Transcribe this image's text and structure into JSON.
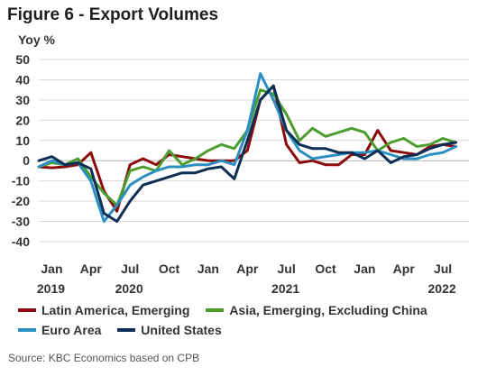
{
  "title": "Figure 6 - Export Volumes",
  "source": "Source: KBC Economics based on CPB",
  "chart_data": {
    "type": "line",
    "ylabel": "Yoy %",
    "ylim": [
      -40,
      50
    ],
    "yticks": [
      50,
      40,
      30,
      20,
      10,
      0,
      -10,
      -20,
      -30,
      -40
    ],
    "xticks": [
      {
        "label": "Jan",
        "year": "2019",
        "x": 1
      },
      {
        "label": "Apr",
        "x": 4
      },
      {
        "label": "Jul",
        "year": "2020",
        "x": 7
      },
      {
        "label": "Oct",
        "x": 10
      },
      {
        "label": "Jan",
        "x": 13
      },
      {
        "label": "Apr",
        "x": 16
      },
      {
        "label": "Jul",
        "year": "2021",
        "x": 19
      },
      {
        "label": "Oct",
        "x": 22
      },
      {
        "label": "Jan",
        "x": 25
      },
      {
        "label": "Apr",
        "x": 28
      },
      {
        "label": "Jul",
        "year": "2022",
        "x": 31
      }
    ],
    "x_range": [
      0,
      33
    ],
    "grid": true,
    "legend_position": "bottom",
    "series": [
      {
        "name": "Latin America, Emerging",
        "color": "#8b0a0a",
        "points": [
          [
            0,
            -3
          ],
          [
            1,
            -3.5
          ],
          [
            2,
            -3
          ],
          [
            3,
            -2
          ],
          [
            4,
            4
          ],
          [
            5,
            -15
          ],
          [
            6,
            -25
          ],
          [
            7,
            -2
          ],
          [
            8,
            1
          ],
          [
            9,
            -2
          ],
          [
            10,
            3
          ],
          [
            11,
            2
          ],
          [
            12,
            1
          ],
          [
            13,
            0
          ],
          [
            14,
            0
          ],
          [
            15,
            0
          ],
          [
            16,
            5
          ],
          [
            17,
            30
          ],
          [
            18,
            37
          ],
          [
            19,
            8
          ],
          [
            20,
            -1
          ],
          [
            21,
            0
          ],
          [
            22,
            -2
          ],
          [
            23,
            -2
          ],
          [
            24,
            3
          ],
          [
            25,
            3
          ],
          [
            26,
            15
          ],
          [
            27,
            5
          ],
          [
            28,
            4
          ],
          [
            29,
            3
          ],
          [
            30,
            7
          ],
          [
            31,
            8
          ],
          [
            32,
            7
          ]
        ]
      },
      {
        "name": "Asia, Emerging, Excluding China",
        "color": "#4c9c2e",
        "points": [
          [
            0,
            -3
          ],
          [
            1,
            -1
          ],
          [
            2,
            -2
          ],
          [
            3,
            1
          ],
          [
            4,
            -8
          ],
          [
            5,
            -16
          ],
          [
            6,
            -22
          ],
          [
            7,
            -5
          ],
          [
            8,
            -3
          ],
          [
            9,
            -5
          ],
          [
            10,
            5
          ],
          [
            11,
            -2
          ],
          [
            12,
            1
          ],
          [
            13,
            5
          ],
          [
            14,
            8
          ],
          [
            15,
            6
          ],
          [
            16,
            15
          ],
          [
            17,
            35
          ],
          [
            18,
            33
          ],
          [
            19,
            23
          ],
          [
            20,
            10
          ],
          [
            21,
            16
          ],
          [
            22,
            12
          ],
          [
            23,
            14
          ],
          [
            24,
            16
          ],
          [
            25,
            14
          ],
          [
            26,
            5
          ],
          [
            27,
            9
          ],
          [
            28,
            11
          ],
          [
            29,
            7
          ],
          [
            30,
            8
          ],
          [
            31,
            11
          ],
          [
            32,
            9
          ]
        ]
      },
      {
        "name": "Euro Area",
        "color": "#2b8fc2",
        "points": [
          [
            0,
            -3
          ],
          [
            1,
            0
          ],
          [
            2,
            -2
          ],
          [
            3,
            -1
          ],
          [
            4,
            -10
          ],
          [
            5,
            -30
          ],
          [
            6,
            -22
          ],
          [
            7,
            -12
          ],
          [
            8,
            -8
          ],
          [
            9,
            -5
          ],
          [
            10,
            -3
          ],
          [
            11,
            -3
          ],
          [
            12,
            -2
          ],
          [
            13,
            -2
          ],
          [
            14,
            0
          ],
          [
            15,
            -2
          ],
          [
            16,
            15
          ],
          [
            17,
            43
          ],
          [
            18,
            30
          ],
          [
            19,
            15
          ],
          [
            20,
            5
          ],
          [
            21,
            1
          ],
          [
            22,
            2
          ],
          [
            23,
            3
          ],
          [
            24,
            4
          ],
          [
            25,
            4
          ],
          [
            26,
            5
          ],
          [
            27,
            3
          ],
          [
            28,
            1
          ],
          [
            29,
            1
          ],
          [
            30,
            3
          ],
          [
            31,
            4
          ],
          [
            32,
            7
          ]
        ]
      },
      {
        "name": "United States",
        "color": "#0d2f55",
        "points": [
          [
            0,
            0
          ],
          [
            1,
            2
          ],
          [
            2,
            -2
          ],
          [
            3,
            -1
          ],
          [
            4,
            -4
          ],
          [
            5,
            -26
          ],
          [
            6,
            -30
          ],
          [
            7,
            -20
          ],
          [
            8,
            -12
          ],
          [
            9,
            -10
          ],
          [
            10,
            -8
          ],
          [
            11,
            -6
          ],
          [
            12,
            -6
          ],
          [
            13,
            -4
          ],
          [
            14,
            -3
          ],
          [
            15,
            -9
          ],
          [
            16,
            10
          ],
          [
            17,
            30
          ],
          [
            18,
            37
          ],
          [
            19,
            15
          ],
          [
            20,
            8
          ],
          [
            21,
            6
          ],
          [
            22,
            6
          ],
          [
            23,
            4
          ],
          [
            24,
            4
          ],
          [
            25,
            1
          ],
          [
            26,
            5
          ],
          [
            27,
            -1
          ],
          [
            28,
            2
          ],
          [
            29,
            3
          ],
          [
            30,
            6
          ],
          [
            31,
            8
          ],
          [
            32,
            9
          ]
        ]
      }
    ]
  }
}
